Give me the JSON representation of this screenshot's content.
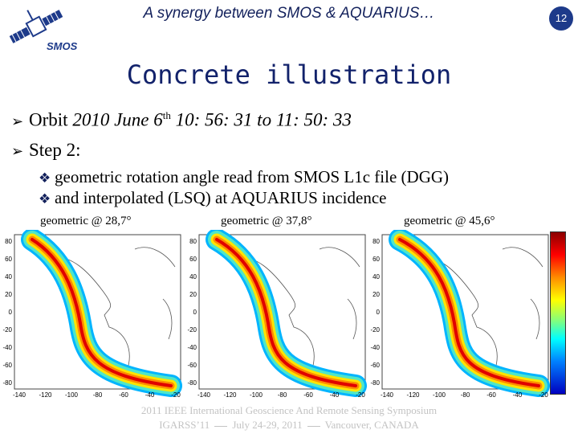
{
  "header": {
    "title": "A synergy between SMOS & AQUARIUS…",
    "logo_text": "SMOS",
    "page_number": "12"
  },
  "title": "Concrete illustration",
  "bullets": [
    {
      "prefix": "Orbit ",
      "italic": "2010 June 6",
      "sup": "th",
      "rest": " 10: 56: 31 to 11: 50: 33"
    },
    {
      "text": "Step 2:"
    }
  ],
  "sub_bullets": [
    "geometric rotation angle read from SMOS L1c file (DGG)",
    "and interpolated (LSQ) at AQUARIUS incidence"
  ],
  "maps": [
    {
      "label": "geometric @ 28,7°"
    },
    {
      "label": "geometric @ 37,8°"
    },
    {
      "label": "geometric @ 45,6°"
    }
  ],
  "map_axes": {
    "y_ticks": [
      "80",
      "60",
      "40",
      "20",
      "0",
      "-20",
      "-40",
      "-60",
      "-80"
    ],
    "x_ticks": [
      "-140",
      "-120",
      "-100",
      "-80",
      "-60",
      "-40",
      "-20"
    ]
  },
  "footer": {
    "line1": "2011 IEEE International Geoscience And Remote Sensing Symposium",
    "line2_a": "IGARSS’11",
    "line2_b": "July 24-29, 2011",
    "line2_c": "Vancouver, CANADA"
  },
  "colors": {
    "accent": "#13215c",
    "page_number_bg": "#1d3a8a",
    "footer": "#c3c3c3"
  }
}
